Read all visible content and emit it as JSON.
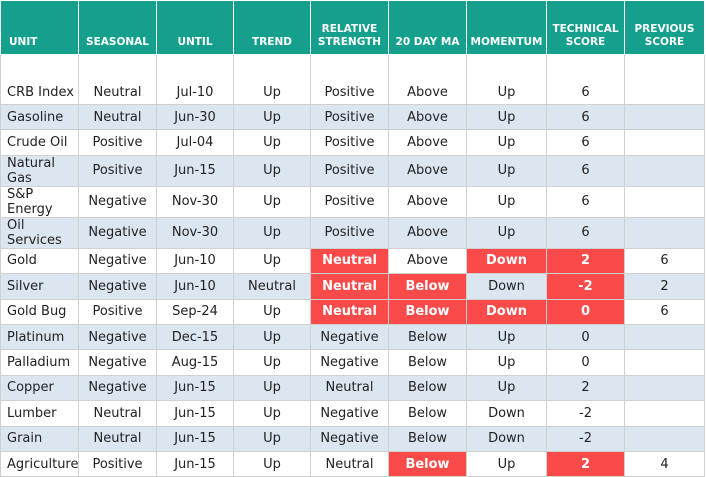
{
  "table": {
    "header": [
      "UNIT",
      "SEASONAL",
      "UNTIL",
      "TREND",
      "RELATIVE STRENGTH",
      "20 DAY MA",
      "MOMENTUM",
      "TECHNICAL SCORE",
      "PREVIOUS SCORE"
    ],
    "highlight_color": "#fb4a4a",
    "rows": [
      [
        "CRB Index",
        "Neutral",
        "Jul-10",
        "Up",
        "Positive",
        "Above",
        "Up",
        "6",
        null
      ],
      [
        "Gasoline",
        "Neutral",
        "Jun-30",
        "Up",
        "Positive",
        "Above",
        "Up",
        "6",
        null
      ],
      [
        "Crude Oil",
        "Positive",
        "Jul-04",
        "Up",
        "Positive",
        "Above",
        "Up",
        "6",
        null
      ],
      [
        "Natural Gas",
        "Positive",
        "Jun-15",
        "Up",
        "Positive",
        "Above",
        "Up",
        "6",
        null
      ],
      [
        "S&P Energy",
        "Negative",
        "Nov-30",
        "Up",
        "Positive",
        "Above",
        "Up",
        "6",
        null
      ],
      [
        "Oil Services",
        "Negative",
        "Nov-30",
        "Up",
        "Positive",
        "Above",
        "Up",
        "6",
        null
      ],
      [
        "Gold",
        "Negative",
        "Jun-10",
        "Up",
        "Neutral",
        "Above",
        "Down",
        "2",
        "6"
      ],
      [
        "Silver",
        "Negative",
        "Jun-10",
        "Neutral",
        "Neutral",
        "Below",
        "Down",
        "-2",
        "2"
      ],
      [
        "Gold Bug",
        "Positive",
        "Sep-24",
        "Up",
        "Neutral",
        "Below",
        "Down",
        "0",
        "6"
      ],
      [
        "Platinum",
        "Negative",
        "Dec-15",
        "Up",
        "Negative",
        "Below",
        "Up",
        "0",
        null
      ],
      [
        "Palladium",
        "Negative",
        "Aug-15",
        "Up",
        "Negative",
        "Below",
        "Up",
        "0",
        null
      ],
      [
        "Copper",
        "Negative",
        "Jun-15",
        "Up",
        "Neutral",
        "Below",
        "Up",
        "2",
        null
      ],
      [
        "Lumber",
        "Neutral",
        "Jun-15",
        "Up",
        "Negative",
        "Below",
        "Down",
        "-2",
        null
      ],
      [
        "Grain",
        "Neutral",
        "Jun-15",
        "Up",
        "Negative",
        "Below",
        "Down",
        "-2",
        null
      ],
      [
        "Agriculture",
        "Positive",
        "Jun-15",
        "Up",
        "Neutral",
        "Below",
        "Up",
        "2",
        "4"
      ]
    ]
  }
}
